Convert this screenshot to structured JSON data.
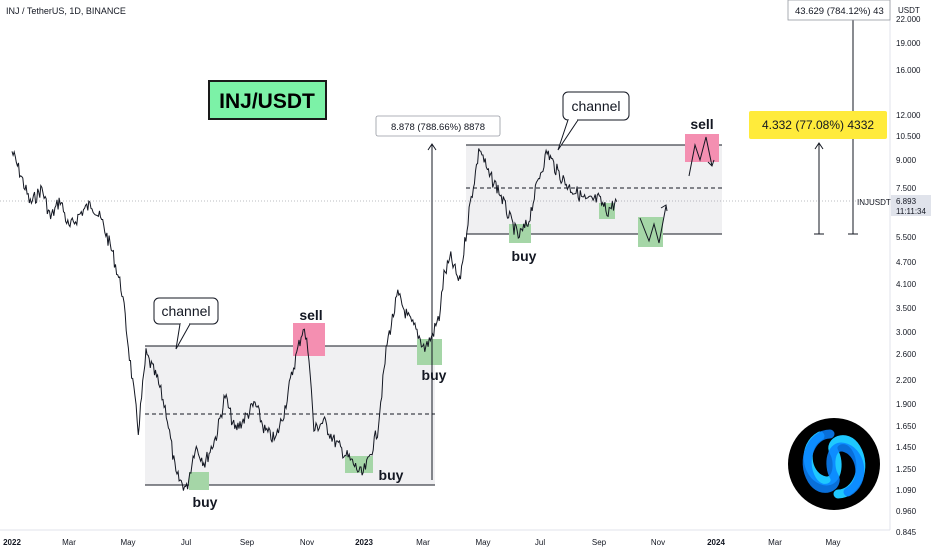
{
  "header": {
    "symbol_title": "INJ / TetherUS, 1D, BINANCE",
    "currency": "USDT"
  },
  "title_box": {
    "text": "INJ/USDT",
    "bg": "#7cf2a7",
    "border": "#1a1a1a"
  },
  "price_tag": {
    "symbol": "INJUSDT",
    "price": "6.893",
    "countdown": "11:11:34"
  },
  "measure_labels": {
    "large": "8.878 (788.66%) 8878",
    "small": "4.332 (77.08%) 4332",
    "top": "43.629 (784.12%) 43"
  },
  "annotations": {
    "channel_1": "channel",
    "channel_2": "channel",
    "sell_1": "sell",
    "sell_2": "sell",
    "buy_1": "buy",
    "buy_2": "buy",
    "buy_3": "buy",
    "buy_4": "buy"
  },
  "colors": {
    "buy_box": "#a5d6a7",
    "sell_box": "#f48fb1",
    "channel_fill": "#f0f0f2",
    "price_line": "#131722",
    "yellow_label": "#ffeb3b"
  },
  "chart_data": {
    "type": "line",
    "scale": "log",
    "x_ticks": [
      "2022",
      "Mar",
      "May",
      "Jul",
      "Sep",
      "Nov",
      "2023",
      "Mar",
      "May",
      "Jul",
      "Sep",
      "Nov",
      "2024",
      "Mar",
      "May"
    ],
    "y_ticks": [
      "22.000",
      "19.000",
      "16.000",
      "12.000",
      "10.500",
      "9.000",
      "7.500",
      "6.893",
      "5.500",
      "4.700",
      "4.100",
      "3.500",
      "3.000",
      "2.600",
      "2.200",
      "1.900",
      "1.650",
      "1.450",
      "1.250",
      "1.090",
      "0.960",
      "0.845"
    ],
    "series": [
      {
        "x": [
          "2022-01-01",
          "2022-01-10",
          "2022-01-20",
          "2022-02-01",
          "2022-02-10",
          "2022-02-20",
          "2022-03-01",
          "2022-03-15",
          "2022-03-25",
          "2022-04-05",
          "2022-04-15",
          "2022-04-25",
          "2022-05-05",
          "2022-05-12",
          "2022-05-20",
          "2022-06-01",
          "2022-06-10",
          "2022-06-20",
          "2022-07-01",
          "2022-07-10",
          "2022-07-20",
          "2022-08-01",
          "2022-08-10",
          "2022-08-20",
          "2022-09-01",
          "2022-09-10",
          "2022-09-20",
          "2022-10-01",
          "2022-10-10",
          "2022-10-20",
          "2022-10-30",
          "2022-11-05",
          "2022-11-10",
          "2022-11-20",
          "2022-12-01",
          "2022-12-10",
          "2022-12-20",
          "2022-12-30",
          "2023-01-05",
          "2023-01-15",
          "2023-01-25",
          "2023-02-05",
          "2023-02-15",
          "2023-02-25",
          "2023-03-05",
          "2023-03-12",
          "2023-03-20",
          "2023-03-25",
          "2023-04-01",
          "2023-04-10",
          "2023-04-20",
          "2023-05-01",
          "2023-05-10",
          "2023-05-20",
          "2023-06-01",
          "2023-06-10",
          "2023-06-20",
          "2023-07-01",
          "2023-07-10",
          "2023-07-20",
          "2023-08-01",
          "2023-08-10",
          "2023-08-20",
          "2023-09-01",
          "2023-09-10",
          "2023-09-20"
        ],
        "values": [
          9.5,
          8.2,
          6.8,
          7.5,
          6.2,
          7.0,
          5.8,
          6.5,
          6.8,
          6.0,
          5.0,
          3.9,
          2.3,
          1.6,
          2.6,
          2.2,
          1.8,
          1.2,
          1.1,
          1.45,
          1.3,
          1.55,
          2.0,
          1.6,
          1.75,
          1.9,
          1.6,
          1.5,
          1.8,
          2.4,
          3.1,
          2.6,
          1.6,
          1.7,
          1.5,
          1.4,
          1.3,
          1.2,
          1.3,
          1.6,
          2.8,
          3.8,
          3.3,
          3.0,
          2.7,
          2.9,
          3.3,
          4.3,
          4.8,
          4.1,
          6.5,
          9.8,
          8.2,
          7.5,
          6.2,
          5.5,
          6.0,
          8.0,
          9.5,
          8.4,
          7.6,
          7.3,
          6.9,
          7.0,
          6.5,
          6.893
        ]
      }
    ]
  }
}
